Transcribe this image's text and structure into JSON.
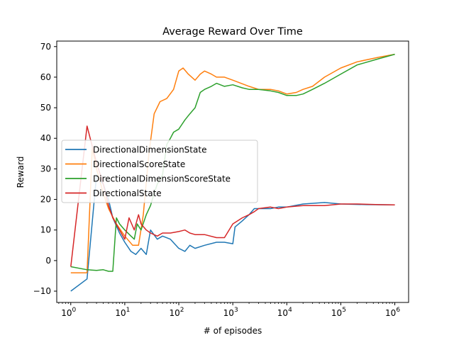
{
  "chart_data": {
    "type": "line",
    "title": "Average Reward Over Time",
    "xlabel": "# of episodes",
    "ylabel": "Reward",
    "xscale": "log",
    "xlim": [
      0.55,
      1800000
    ],
    "ylim": [
      -13.7,
      71.8
    ],
    "grid": false,
    "legend_position": "center-left",
    "x_ticks": [
      {
        "value": 1,
        "base": "10",
        "exp": "0"
      },
      {
        "value": 10,
        "base": "10",
        "exp": "1"
      },
      {
        "value": 100,
        "base": "10",
        "exp": "2"
      },
      {
        "value": 1000,
        "base": "10",
        "exp": "3"
      },
      {
        "value": 10000,
        "base": "10",
        "exp": "4"
      },
      {
        "value": 100000,
        "base": "10",
        "exp": "5"
      },
      {
        "value": 1000000,
        "base": "10",
        "exp": "6"
      }
    ],
    "y_ticks": [
      -10,
      0,
      10,
      20,
      30,
      40,
      50,
      60,
      70
    ],
    "series": [
      {
        "name": "DirectionalDimensionState",
        "color": "#1f77b4",
        "points": [
          [
            1,
            -10
          ],
          [
            2,
            -6
          ],
          [
            3,
            28
          ],
          [
            4,
            25
          ],
          [
            5,
            20
          ],
          [
            6,
            14
          ],
          [
            8,
            9
          ],
          [
            10,
            6
          ],
          [
            13,
            3
          ],
          [
            16,
            2
          ],
          [
            20,
            4
          ],
          [
            25,
            2
          ],
          [
            30,
            10
          ],
          [
            40,
            7
          ],
          [
            50,
            8
          ],
          [
            70,
            7
          ],
          [
            100,
            4
          ],
          [
            130,
            3
          ],
          [
            160,
            5
          ],
          [
            200,
            4
          ],
          [
            300,
            5
          ],
          [
            500,
            6
          ],
          [
            700,
            6
          ],
          [
            1000,
            5.5
          ],
          [
            1100,
            11
          ],
          [
            1500,
            13
          ],
          [
            2000,
            15
          ],
          [
            2500,
            17
          ],
          [
            3000,
            17
          ],
          [
            5000,
            17
          ],
          [
            7000,
            17.5
          ],
          [
            10000,
            17.5
          ],
          [
            20000,
            18.5
          ],
          [
            50000,
            19
          ],
          [
            100000,
            18.5
          ],
          [
            300000,
            18.3
          ],
          [
            1000000,
            18.2
          ]
        ]
      },
      {
        "name": "DirectionalScoreState",
        "color": "#ff7f0e",
        "points": [
          [
            1,
            -4
          ],
          [
            2,
            -4
          ],
          [
            2.5,
            37
          ],
          [
            3,
            30
          ],
          [
            4,
            22
          ],
          [
            5,
            17
          ],
          [
            7,
            12
          ],
          [
            10,
            8
          ],
          [
            14,
            5
          ],
          [
            18,
            5
          ],
          [
            22,
            15
          ],
          [
            28,
            35
          ],
          [
            35,
            48
          ],
          [
            45,
            52
          ],
          [
            60,
            53
          ],
          [
            80,
            56
          ],
          [
            100,
            62
          ],
          [
            120,
            63
          ],
          [
            150,
            61
          ],
          [
            200,
            59
          ],
          [
            250,
            61
          ],
          [
            300,
            62
          ],
          [
            400,
            61
          ],
          [
            500,
            60
          ],
          [
            700,
            60
          ],
          [
            1000,
            59
          ],
          [
            2000,
            57
          ],
          [
            3000,
            56
          ],
          [
            5000,
            56
          ],
          [
            7000,
            55.5
          ],
          [
            10000,
            54.5
          ],
          [
            15000,
            55
          ],
          [
            20000,
            56
          ],
          [
            30000,
            57
          ],
          [
            50000,
            60
          ],
          [
            100000,
            63
          ],
          [
            200000,
            65
          ],
          [
            500000,
            66.5
          ],
          [
            1000000,
            67.5
          ]
        ]
      },
      {
        "name": "DirectionalDimensionScoreState",
        "color": "#2ca02c",
        "points": [
          [
            1,
            -2
          ],
          [
            2,
            -3
          ],
          [
            3,
            -3.2
          ],
          [
            4,
            -3
          ],
          [
            5,
            -3.5
          ],
          [
            6,
            -3.5
          ],
          [
            7,
            14
          ],
          [
            8,
            12
          ],
          [
            10,
            10
          ],
          [
            13,
            8
          ],
          [
            15,
            7
          ],
          [
            17,
            12
          ],
          [
            20,
            10
          ],
          [
            25,
            15
          ],
          [
            30,
            18
          ],
          [
            35,
            22
          ],
          [
            40,
            25
          ],
          [
            50,
            28
          ],
          [
            60,
            38
          ],
          [
            70,
            40
          ],
          [
            80,
            42
          ],
          [
            100,
            43
          ],
          [
            130,
            46
          ],
          [
            160,
            48
          ],
          [
            200,
            50
          ],
          [
            250,
            55
          ],
          [
            300,
            56
          ],
          [
            400,
            57
          ],
          [
            500,
            58
          ],
          [
            700,
            57
          ],
          [
            1000,
            57.5
          ],
          [
            1500,
            56.5
          ],
          [
            2000,
            56
          ],
          [
            3000,
            56
          ],
          [
            5000,
            55.5
          ],
          [
            7000,
            55
          ],
          [
            10000,
            54
          ],
          [
            15000,
            54
          ],
          [
            20000,
            54.5
          ],
          [
            30000,
            56
          ],
          [
            50000,
            58
          ],
          [
            100000,
            61
          ],
          [
            200000,
            64
          ],
          [
            500000,
            66
          ],
          [
            1000000,
            67.5
          ]
        ]
      },
      {
        "name": "DirectionalState",
        "color": "#d62728",
        "points": [
          [
            1,
            -2
          ],
          [
            2,
            44
          ],
          [
            3,
            32
          ],
          [
            4,
            25
          ],
          [
            5,
            18
          ],
          [
            6,
            14
          ],
          [
            8,
            10
          ],
          [
            10,
            7
          ],
          [
            12,
            14
          ],
          [
            15,
            10
          ],
          [
            18,
            15
          ],
          [
            20,
            12
          ],
          [
            25,
            10
          ],
          [
            30,
            9
          ],
          [
            40,
            8
          ],
          [
            50,
            9
          ],
          [
            70,
            9
          ],
          [
            100,
            9.5
          ],
          [
            130,
            10
          ],
          [
            160,
            9
          ],
          [
            200,
            8.5
          ],
          [
            300,
            8.5
          ],
          [
            500,
            7.5
          ],
          [
            700,
            7.5
          ],
          [
            1000,
            12
          ],
          [
            1500,
            14
          ],
          [
            2000,
            15
          ],
          [
            2500,
            16
          ],
          [
            3000,
            17
          ],
          [
            5000,
            17.5
          ],
          [
            7000,
            17
          ],
          [
            10000,
            17.5
          ],
          [
            20000,
            18
          ],
          [
            50000,
            18
          ],
          [
            100000,
            18.5
          ],
          [
            200000,
            18.5
          ],
          [
            500000,
            18.3
          ],
          [
            1000000,
            18.2
          ]
        ]
      }
    ]
  }
}
